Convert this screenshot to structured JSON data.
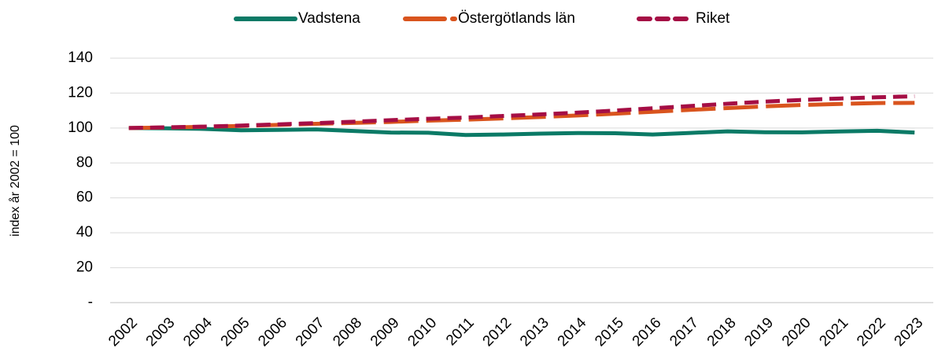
{
  "chart_data": {
    "type": "line",
    "y_axis_label": "index år 2002 = 100",
    "categories": [
      "2002",
      "2003",
      "2004",
      "2005",
      "2006",
      "2007",
      "2008",
      "2009",
      "2010",
      "2011",
      "2012",
      "2013",
      "2014",
      "2015",
      "2016",
      "2017",
      "2018",
      "2019",
      "2020",
      "2021",
      "2022",
      "2023"
    ],
    "series": [
      {
        "name": "Vadstena",
        "color": "#0b7a66",
        "dash": "solid",
        "values": [
          100,
          99.8,
          99.5,
          98.7,
          98.9,
          99.2,
          98.3,
          97.4,
          97.3,
          96.0,
          96.3,
          96.8,
          97.1,
          97.0,
          96.3,
          97.2,
          98.1,
          97.6,
          97.5,
          98.0,
          98.4,
          97.4
        ]
      },
      {
        "name": "Östergötlands län",
        "color": "#d9541e",
        "dash": "long",
        "values": [
          100,
          100.3,
          100.7,
          101.2,
          101.8,
          102.4,
          102.9,
          103.5,
          104.2,
          104.8,
          105.5,
          106.3,
          107.2,
          108.2,
          109.3,
          110.4,
          111.4,
          112.4,
          113.2,
          113.8,
          114.3,
          114.4
        ]
      },
      {
        "name": "Riket",
        "color": "#a50e45",
        "dash": "short",
        "values": [
          100,
          100.4,
          100.8,
          101.4,
          102.1,
          102.8,
          103.6,
          104.5,
          105.3,
          106.0,
          106.9,
          107.8,
          108.8,
          110.0,
          111.3,
          112.6,
          113.9,
          115.1,
          116.1,
          116.9,
          117.6,
          118.2
        ]
      }
    ],
    "ylim": [
      0,
      140
    ],
    "yticks": [
      {
        "value": 0,
        "label": "-"
      },
      20,
      40,
      60,
      80,
      100,
      120,
      140
    ],
    "grid": true,
    "legend": "top"
  }
}
